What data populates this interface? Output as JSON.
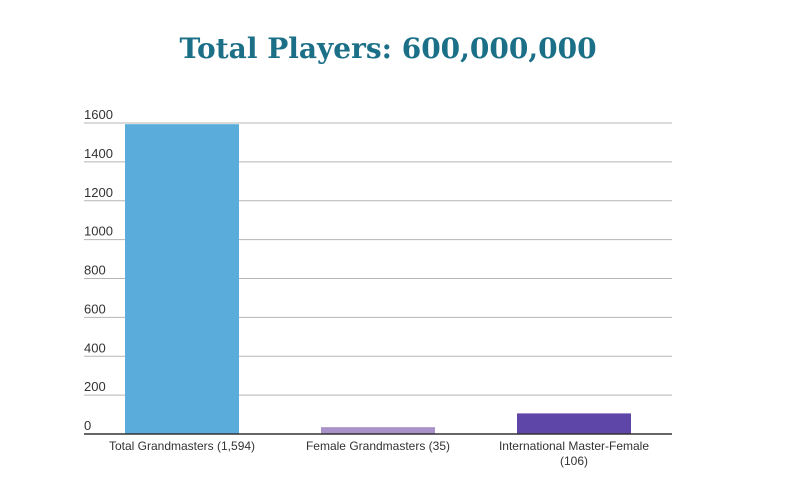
{
  "title": "Total Players: 600,000,000",
  "chart_data": {
    "type": "bar",
    "title": "Total Players: 600,000,000",
    "xlabel": "",
    "ylabel": "",
    "categories": [
      [
        "Total Grandmasters (1,594)"
      ],
      [
        "Female Grandmasters (35)"
      ],
      [
        "International Master-Female",
        "(106)"
      ]
    ],
    "values": [
      1594,
      35,
      106
    ],
    "colors": [
      "#5aaddb",
      "#a892c8",
      "#5e45a8"
    ],
    "ylim": [
      0,
      1600
    ],
    "yticks": [
      0,
      200,
      400,
      600,
      800,
      1000,
      1200,
      1400,
      1600
    ],
    "grid": true,
    "legend": "none"
  }
}
